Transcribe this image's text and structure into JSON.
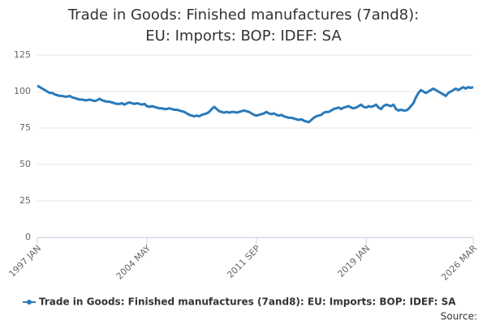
{
  "chart_data": {
    "type": "line",
    "title": "Trade in Goods: Finished manufactures (7and8): EU: Imports: BOP: IDEF: SA",
    "source": "Source:",
    "categories": [
      "1997 JAN",
      null,
      null,
      null,
      null,
      null,
      null,
      null,
      null,
      null,
      null,
      null,
      null,
      null,
      null,
      null,
      null,
      null,
      null,
      null,
      null,
      null,
      null,
      null,
      null,
      null,
      null,
      null,
      null,
      null,
      null,
      null,
      null,
      null,
      null,
      null,
      null,
      null,
      null,
      null,
      null,
      null,
      null,
      null,
      "2004 MAY",
      null,
      null,
      null,
      null,
      null,
      null,
      null,
      null,
      null,
      null,
      null,
      null,
      null,
      null,
      null,
      null,
      null,
      null,
      null,
      null,
      null,
      null,
      null,
      null,
      null,
      null,
      null,
      null,
      null,
      null,
      null,
      null,
      null,
      null,
      null,
      null,
      null,
      null,
      null,
      null,
      null,
      null,
      null,
      "2011 SEP",
      null,
      null,
      null,
      null,
      null,
      null,
      null,
      null,
      null,
      null,
      null,
      null,
      null,
      null,
      null,
      null,
      null,
      null,
      null,
      null,
      null,
      null,
      null,
      null,
      null,
      null,
      null,
      null,
      null,
      null,
      null,
      null,
      null,
      null,
      null,
      null,
      null,
      null,
      null,
      null,
      null,
      null,
      null,
      "2019 JAN",
      null,
      null,
      null,
      null,
      null,
      null,
      null,
      null,
      null,
      null,
      null,
      null,
      null,
      null,
      null,
      null,
      null,
      null,
      null,
      null,
      null,
      null,
      null,
      null,
      null,
      null,
      null,
      null,
      null,
      null,
      null,
      null,
      null,
      null,
      null,
      null,
      null,
      null,
      null,
      null,
      null,
      null,
      "2026 MAR"
    ],
    "series": [
      {
        "name": "Trade in Goods: Finished manufactures (7and8): EU: Imports: BOP: IDEF: SA",
        "color": "#2a7ab9",
        "values": [
          104,
          103,
          102,
          101,
          100,
          99,
          99,
          98,
          97.5,
          97,
          97,
          96.5,
          96.5,
          97,
          96,
          95.5,
          95,
          94.5,
          94.5,
          94,
          94,
          94.5,
          94,
          93.5,
          94,
          95,
          94,
          93.5,
          93,
          93,
          92.5,
          92,
          91.5,
          91.5,
          92,
          91,
          92,
          92.5,
          92,
          91.5,
          92,
          91.5,
          91,
          91.5,
          90,
          89.5,
          90,
          89.5,
          89,
          88.5,
          88.5,
          88,
          88,
          88.5,
          88,
          87.5,
          87.5,
          87,
          86.5,
          86,
          85,
          84,
          83.5,
          83,
          83.5,
          83,
          84,
          84.5,
          85,
          86,
          88,
          89.5,
          88,
          86.5,
          86,
          85.5,
          86,
          85.5,
          86,
          86,
          85.5,
          86,
          86.5,
          87,
          86.5,
          86,
          85,
          84,
          83.5,
          84,
          84.5,
          85,
          86,
          85,
          84.5,
          85,
          84,
          83.5,
          84,
          83,
          82.5,
          82,
          82,
          81.5,
          81,
          80.5,
          81,
          80,
          79.5,
          79,
          80.5,
          82,
          83,
          83.5,
          84,
          85.5,
          86,
          86,
          87,
          88,
          88.5,
          89,
          88,
          89,
          89.5,
          90,
          89,
          88.5,
          89,
          90,
          91,
          89.5,
          89,
          90,
          89.5,
          90,
          91,
          89,
          88,
          90,
          91,
          90.5,
          90,
          91,
          88,
          87,
          87.5,
          87,
          87,
          88,
          90,
          92,
          96,
          99,
          101,
          100,
          99,
          100,
          101,
          102,
          101,
          100,
          99,
          98,
          97,
          99,
          100,
          101,
          102,
          101,
          102,
          103,
          102,
          103,
          102.5,
          103
        ]
      }
    ],
    "ylim": [
      0,
      125
    ],
    "yticks": [
      0,
      25,
      50,
      75,
      100,
      125
    ],
    "grid": true
  }
}
